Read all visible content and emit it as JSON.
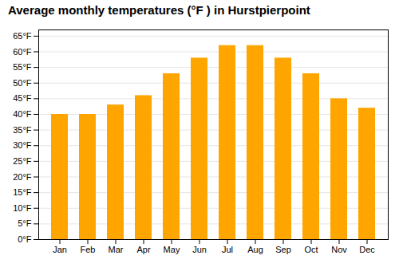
{
  "chart_data": {
    "type": "bar",
    "title": "Average monthly temperatures (°F ) in Hurstpierpoint",
    "categories": [
      "Jan",
      "Feb",
      "Mar",
      "Apr",
      "May",
      "Jun",
      "Jul",
      "Aug",
      "Sep",
      "Oct",
      "Nov",
      "Dec"
    ],
    "values": [
      40,
      40,
      43,
      46,
      53,
      58,
      62,
      62,
      58,
      53,
      45,
      42
    ],
    "color": "#FFA500",
    "ylim": [
      0,
      67
    ],
    "yticks": [
      {
        "value": 0,
        "label": "0°F"
      },
      {
        "value": 5,
        "label": "5°F"
      },
      {
        "value": 10,
        "label": "10°F"
      },
      {
        "value": 15,
        "label": "15°F"
      },
      {
        "value": 20,
        "label": "20°F"
      },
      {
        "value": 25,
        "label": "25°F"
      },
      {
        "value": 30,
        "label": "30°F"
      },
      {
        "value": 35,
        "label": "35°F"
      },
      {
        "value": 40,
        "label": "40°F"
      },
      {
        "value": 45,
        "label": "45°F"
      },
      {
        "value": 50,
        "label": "50°F"
      },
      {
        "value": 55,
        "label": "55°F"
      },
      {
        "value": 60,
        "label": "60°F"
      },
      {
        "value": 65,
        "label": "65°F"
      }
    ],
    "grid": true
  }
}
